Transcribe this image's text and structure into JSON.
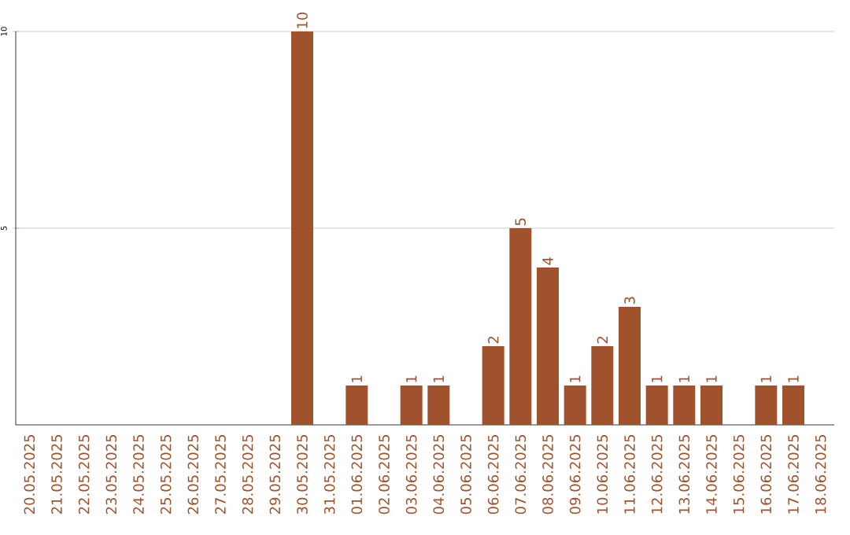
{
  "chart_data": {
    "type": "bar",
    "categories": [
      "20.05.2025",
      "21.05.2025",
      "22.05.2025",
      "23.05.2025",
      "24.05.2025",
      "25.05.2025",
      "26.05.2025",
      "27.05.2025",
      "28.05.2025",
      "29.05.2025",
      "30.05.2025",
      "31.05.2025",
      "01.06.2025",
      "02.06.2025",
      "03.06.2025",
      "04.06.2025",
      "05.06.2025",
      "06.06.2025",
      "07.06.2025",
      "08.06.2025",
      "09.06.2025",
      "10.06.2025",
      "11.06.2025",
      "12.06.2025",
      "13.06.2025",
      "14.06.2025",
      "15.06.2025",
      "16.06.2025",
      "17.06.2025",
      "18.06.2025"
    ],
    "values": [
      0,
      0,
      0,
      0,
      0,
      0,
      0,
      0,
      0,
      0,
      10,
      0,
      1,
      0,
      1,
      1,
      0,
      2,
      5,
      4,
      1,
      2,
      3,
      1,
      1,
      1,
      0,
      1,
      1,
      0
    ],
    "value_labels": [
      null,
      null,
      null,
      null,
      null,
      null,
      null,
      null,
      null,
      null,
      "10",
      null,
      "1",
      null,
      "1",
      "1",
      null,
      "2",
      "5",
      "4",
      "1",
      "2",
      "3",
      "1",
      "1",
      "1",
      null,
      "1",
      "1",
      null
    ],
    "color": "#a0522d",
    "ylim": [
      0,
      10
    ],
    "yticks": [
      5,
      10
    ],
    "grid": "y"
  }
}
